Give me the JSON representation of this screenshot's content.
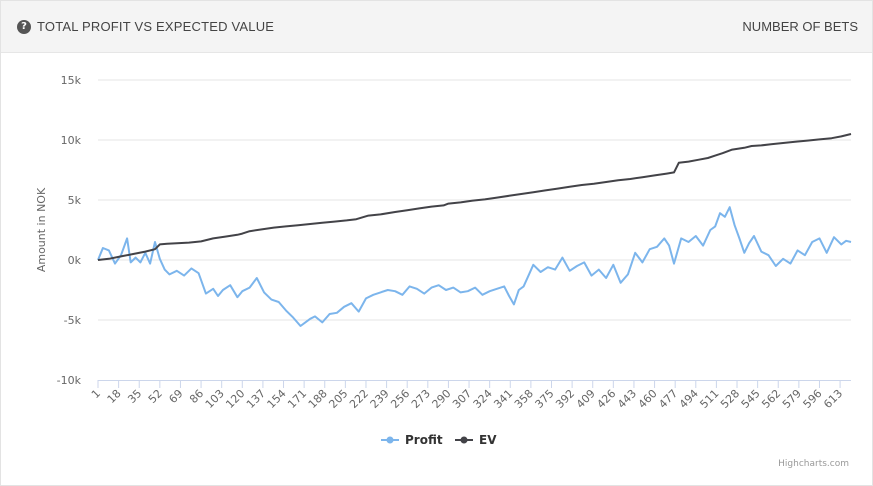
{
  "header": {
    "title": "TOTAL PROFIT VS EXPECTED VALUE",
    "help_glyph": "?",
    "right_label": "NUMBER OF BETS"
  },
  "credit": "Highcharts.com",
  "colors": {
    "profit": "#7cb5ec",
    "ev": "#434348",
    "grid": "#e6e6e6",
    "axis_text": "#666666"
  },
  "icons": {
    "help": "question-circle-icon"
  },
  "chart_data": {
    "type": "line",
    "ylabel": "Amount in NOK",
    "xlabel": "",
    "ylim": [
      -10000,
      15000
    ],
    "yticks": [
      -10000,
      -5000,
      0,
      5000,
      10000,
      15000
    ],
    "ytick_labels": [
      "-10k",
      "-5k",
      "0k",
      "5k",
      "10k",
      "15k"
    ],
    "xlim": [
      1,
      622
    ],
    "xticks": [
      1,
      18,
      35,
      52,
      69,
      86,
      103,
      120,
      137,
      154,
      171,
      188,
      205,
      222,
      239,
      256,
      273,
      290,
      307,
      324,
      341,
      358,
      375,
      392,
      409,
      426,
      443,
      460,
      477,
      494,
      511,
      528,
      545,
      562,
      579,
      596,
      613
    ],
    "legend": "bottom-center",
    "grid": true,
    "series": [
      {
        "name": "Profit",
        "x": [
          1,
          5,
          10,
          15,
          20,
          25,
          28,
          32,
          36,
          40,
          44,
          48,
          52,
          56,
          60,
          66,
          72,
          78,
          84,
          90,
          96,
          100,
          104,
          110,
          116,
          120,
          126,
          132,
          138,
          144,
          150,
          156,
          162,
          168,
          172,
          176,
          180,
          186,
          192,
          198,
          204,
          210,
          216,
          222,
          228,
          234,
          240,
          246,
          252,
          258,
          264,
          270,
          276,
          282,
          288,
          294,
          300,
          306,
          312,
          318,
          324,
          330,
          336,
          340,
          344,
          348,
          352,
          356,
          360,
          366,
          372,
          378,
          384,
          390,
          396,
          402,
          408,
          414,
          420,
          426,
          432,
          438,
          444,
          450,
          456,
          462,
          468,
          472,
          476,
          482,
          488,
          494,
          500,
          506,
          510,
          514,
          518,
          522,
          526,
          530,
          534,
          538,
          542,
          548,
          554,
          560,
          566,
          572,
          578,
          584,
          590,
          596,
          602,
          608,
          614,
          618,
          622
        ],
        "y": [
          0,
          1000,
          800,
          -300,
          400,
          1800,
          -200,
          200,
          -200,
          600,
          -300,
          1500,
          100,
          -800,
          -1200,
          -900,
          -1300,
          -700,
          -1100,
          -2800,
          -2400,
          -3000,
          -2500,
          -2100,
          -3100,
          -2600,
          -2300,
          -1500,
          -2700,
          -3300,
          -3500,
          -4200,
          -4800,
          -5500,
          -5200,
          -4900,
          -4700,
          -5200,
          -4500,
          -4400,
          -3900,
          -3600,
          -4300,
          -3200,
          -2900,
          -2700,
          -2500,
          -2600,
          -2900,
          -2200,
          -2400,
          -2800,
          -2300,
          -2100,
          -2500,
          -2300,
          -2700,
          -2600,
          -2300,
          -2900,
          -2600,
          -2400,
          -2200,
          -3000,
          -3700,
          -2500,
          -2200,
          -1300,
          -400,
          -1000,
          -600,
          -800,
          200,
          -900,
          -500,
          -200,
          -1300,
          -800,
          -1500,
          -400,
          -1900,
          -1200,
          600,
          -200,
          900,
          1100,
          1800,
          1200,
          -300,
          1800,
          1500,
          2000,
          1200,
          2500,
          2800,
          3900,
          3600,
          4400,
          2900,
          1800,
          600,
          1400,
          2000,
          700,
          400,
          -500,
          100,
          -300,
          800,
          400,
          1500,
          1800,
          600,
          1900,
          1300,
          1600,
          1500
        ]
      },
      {
        "name": "EV",
        "x": [
          1,
          10,
          20,
          30,
          40,
          48,
          52,
          58,
          66,
          76,
          86,
          96,
          106,
          116,
          120,
          126,
          136,
          146,
          156,
          166,
          176,
          186,
          196,
          206,
          214,
          224,
          234,
          246,
          256,
          266,
          276,
          286,
          290,
          300,
          310,
          320,
          330,
          340,
          350,
          360,
          370,
          380,
          390,
          400,
          410,
          420,
          430,
          440,
          450,
          460,
          470,
          476,
          480,
          488,
          496,
          504,
          510,
          516,
          524,
          534,
          540,
          548,
          556,
          566,
          576,
          586,
          596,
          606,
          614,
          622
        ],
        "y": [
          0,
          100,
          300,
          500,
          700,
          900,
          1300,
          1350,
          1400,
          1450,
          1550,
          1800,
          1950,
          2100,
          2200,
          2400,
          2550,
          2700,
          2800,
          2900,
          3000,
          3100,
          3200,
          3300,
          3400,
          3700,
          3800,
          4000,
          4150,
          4300,
          4450,
          4550,
          4700,
          4800,
          4950,
          5050,
          5200,
          5350,
          5500,
          5650,
          5800,
          5950,
          6100,
          6250,
          6350,
          6500,
          6650,
          6750,
          6900,
          7050,
          7200,
          7300,
          8100,
          8200,
          8350,
          8500,
          8700,
          8900,
          9200,
          9350,
          9500,
          9550,
          9650,
          9750,
          9850,
          9950,
          10050,
          10150,
          10300,
          10500
        ]
      }
    ]
  }
}
